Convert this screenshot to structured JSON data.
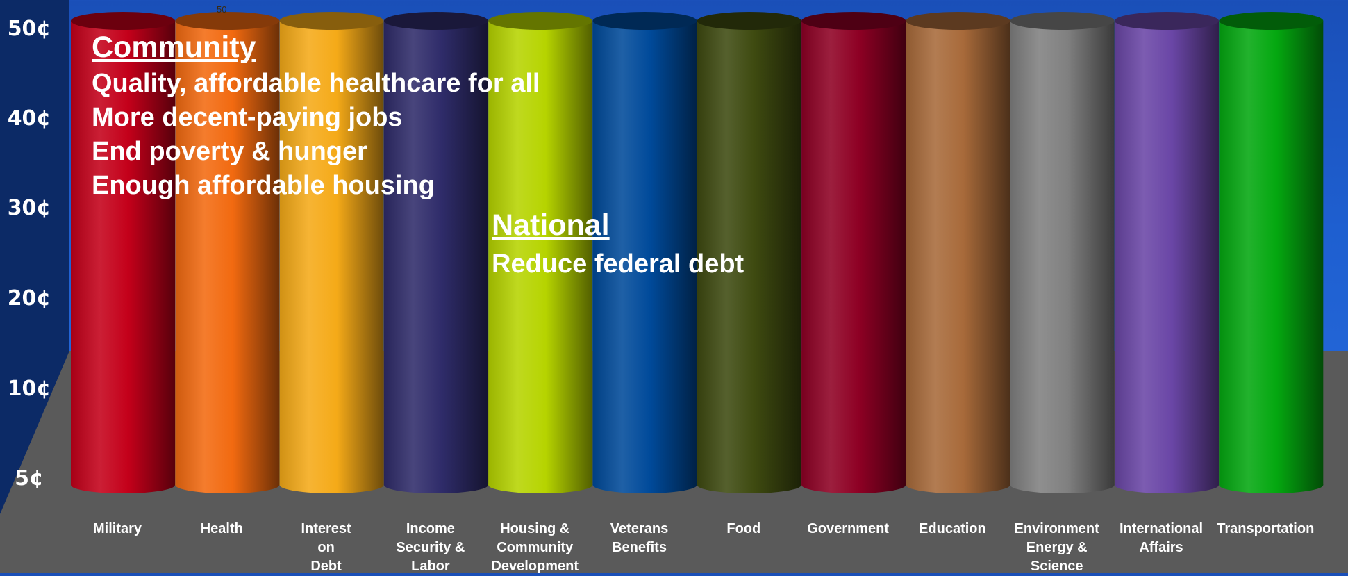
{
  "chart_data": {
    "type": "bar",
    "categories": [
      "Military",
      "Health",
      "Interest\non\nDebt",
      "Income\nSecurity &\nLabor",
      "Housing &\nCommunity\nDevelopment",
      "Veterans\nBenefits",
      "Food",
      "Government",
      "Education",
      "Environment\nEnergy &\nScience",
      "International\nAffairs",
      "Transportation"
    ],
    "values": [
      50,
      50,
      50,
      50,
      50,
      50,
      50,
      50,
      50,
      50,
      50,
      50
    ],
    "colors": [
      "#c4001a",
      "#f26a10",
      "#f5aa18",
      "#2f2c6a",
      "#b6d400",
      "#004a9a",
      "#3e4a10",
      "#8e0024",
      "#a86a3a",
      "#808080",
      "#6a46a6",
      "#04a810"
    ],
    "yticks": [
      "5¢",
      "10¢",
      "20¢",
      "30¢",
      "40¢",
      "50¢"
    ],
    "ytick_values": [
      5,
      10,
      20,
      30,
      40,
      50
    ],
    "ylim": [
      5,
      50
    ],
    "top_tick_label": "50",
    "title": "",
    "xlabel": "",
    "ylabel": ""
  },
  "annotations": {
    "community": {
      "heading": "Community",
      "lines": [
        "Quality, affordable healthcare for all",
        "More decent-paying jobs",
        "End poverty & hunger",
        "Enough affordable housing"
      ]
    },
    "national": {
      "heading": "National",
      "lines": [
        "Reduce federal debt"
      ]
    }
  },
  "colors": {
    "background": "#1e5fd0",
    "floor": "#5a5a5a",
    "left_wall": "#0c2a66"
  }
}
